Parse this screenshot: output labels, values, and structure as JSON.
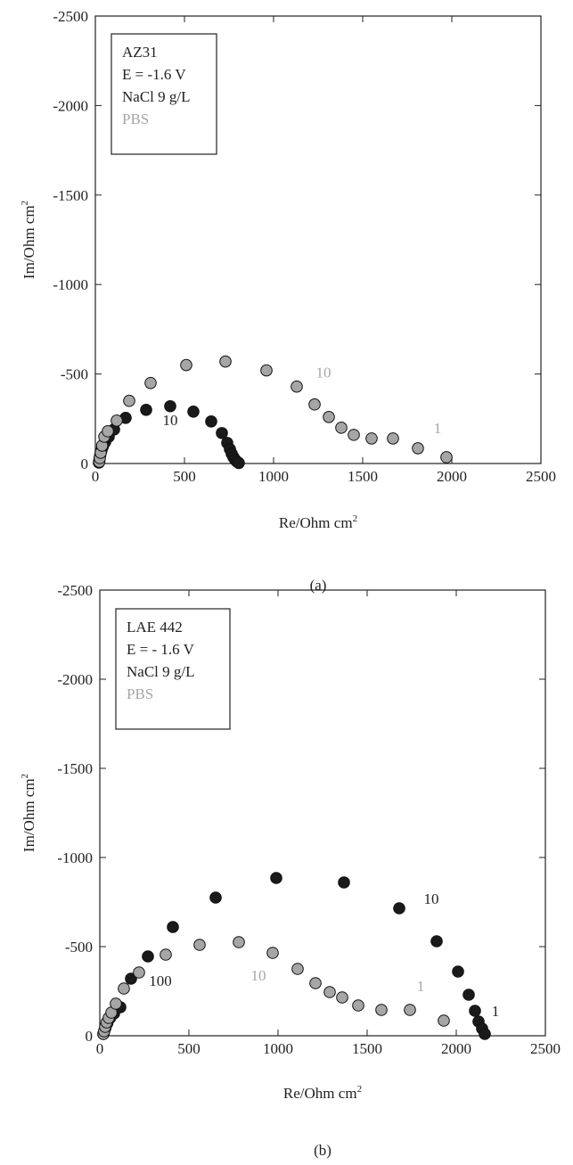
{
  "colors": {
    "black_series": "#1a1a1a",
    "gray_series": "#a6a6a6",
    "marker_edge": "#111111",
    "axis": "#222222"
  },
  "chart_data": [
    {
      "type": "scatter",
      "panel_label": "(a)",
      "xlabel": "Re/Ohm cm",
      "ylabel": "Im/Ohm cm",
      "unit_sup": "2",
      "xlim": [
        0,
        2500
      ],
      "ylim": [
        0,
        -2500
      ],
      "xticks": [
        0,
        500,
        1000,
        1500,
        2000,
        2500
      ],
      "yticks": [
        0,
        -500,
        -1000,
        -1500,
        -2000,
        -2500
      ],
      "grid": false,
      "legend_position": "top-left",
      "legend": [
        "AZ31",
        "E = -1.6 V",
        "NaCl 9 g/L",
        "PBS"
      ],
      "series": [
        {
          "name": "NaCl 9 g/L",
          "color": "#1a1a1a",
          "x": [
            20,
            22,
            24,
            27,
            30,
            35,
            42,
            55,
            75,
            105,
            170,
            285,
            420,
            550,
            650,
            710,
            740,
            755,
            765,
            775,
            785,
            795,
            805
          ],
          "y": [
            -5,
            -15,
            -30,
            -45,
            -60,
            -75,
            -95,
            -120,
            -150,
            -190,
            -255,
            -300,
            -320,
            -290,
            -235,
            -170,
            -115,
            -80,
            -55,
            -35,
            -20,
            -10,
            -3
          ]
        },
        {
          "name": "PBS",
          "color": "#a6a6a6",
          "x": [
            22,
            25,
            30,
            38,
            50,
            70,
            120,
            190,
            310,
            510,
            730,
            960,
            1130,
            1230,
            1310,
            1380,
            1450,
            1550,
            1670,
            1810,
            1970
          ],
          "y": [
            -10,
            -30,
            -60,
            -100,
            -150,
            -180,
            -240,
            -350,
            -450,
            -550,
            -570,
            -520,
            -430,
            -330,
            -260,
            -200,
            -160,
            -140,
            -140,
            -85,
            -35
          ]
        }
      ],
      "annotations": [
        {
          "text": "10",
          "x": 420,
          "y": -215,
          "color": "#222222"
        },
        {
          "text": "10",
          "x": 1280,
          "y": -480,
          "color": "#a6a6a6"
        },
        {
          "text": "1",
          "x": 1920,
          "y": -170,
          "color": "#a6a6a6"
        }
      ]
    },
    {
      "type": "scatter",
      "panel_label": "(b)",
      "xlabel": "Re/Ohm cm",
      "ylabel": "Im/Ohm cm",
      "unit_sup": "2",
      "xlim": [
        0,
        2500
      ],
      "ylim": [
        0,
        -2500
      ],
      "xticks": [
        0,
        500,
        1000,
        1500,
        2000,
        2500
      ],
      "yticks": [
        0,
        -500,
        -1000,
        -1500,
        -2000,
        -2500
      ],
      "grid": false,
      "legend_position": "top-left",
      "legend": [
        "LAE 442",
        "E = - 1.6 V",
        "NaCl 9 g/L",
        "PBS"
      ],
      "series": [
        {
          "name": "NaCl 9 g/L",
          "color": "#1a1a1a",
          "x": [
            20,
            25,
            32,
            42,
            58,
            80,
            115,
            175,
            270,
            410,
            650,
            990,
            1370,
            1680,
            1890,
            2010,
            2070,
            2105,
            2125,
            2145,
            2160
          ],
          "y": [
            -10,
            -25,
            -45,
            -70,
            -100,
            -125,
            -160,
            -320,
            -445,
            -610,
            -775,
            -885,
            -860,
            -715,
            -530,
            -360,
            -230,
            -140,
            -80,
            -40,
            -10
          ]
        },
        {
          "name": "PBS",
          "color": "#a6a6a6",
          "x": [
            20,
            24,
            30,
            38,
            50,
            65,
            90,
            135,
            220,
            370,
            560,
            780,
            970,
            1110,
            1210,
            1290,
            1360,
            1450,
            1580,
            1740,
            1930
          ],
          "y": [
            -10,
            -25,
            -50,
            -75,
            -100,
            -130,
            -180,
            -265,
            -355,
            -455,
            -510,
            -525,
            -465,
            -375,
            -295,
            -245,
            -215,
            -170,
            -145,
            -145,
            -85
          ]
        }
      ],
      "annotations": [
        {
          "text": "100",
          "x": 340,
          "y": -280,
          "color": "#222222"
        },
        {
          "text": "10",
          "x": 1860,
          "y": -740,
          "color": "#222222"
        },
        {
          "text": "1",
          "x": 2220,
          "y": -110,
          "color": "#222222"
        },
        {
          "text": "10",
          "x": 890,
          "y": -310,
          "color": "#a6a6a6"
        },
        {
          "text": "1",
          "x": 1800,
          "y": -250,
          "color": "#a6a6a6"
        }
      ]
    }
  ]
}
